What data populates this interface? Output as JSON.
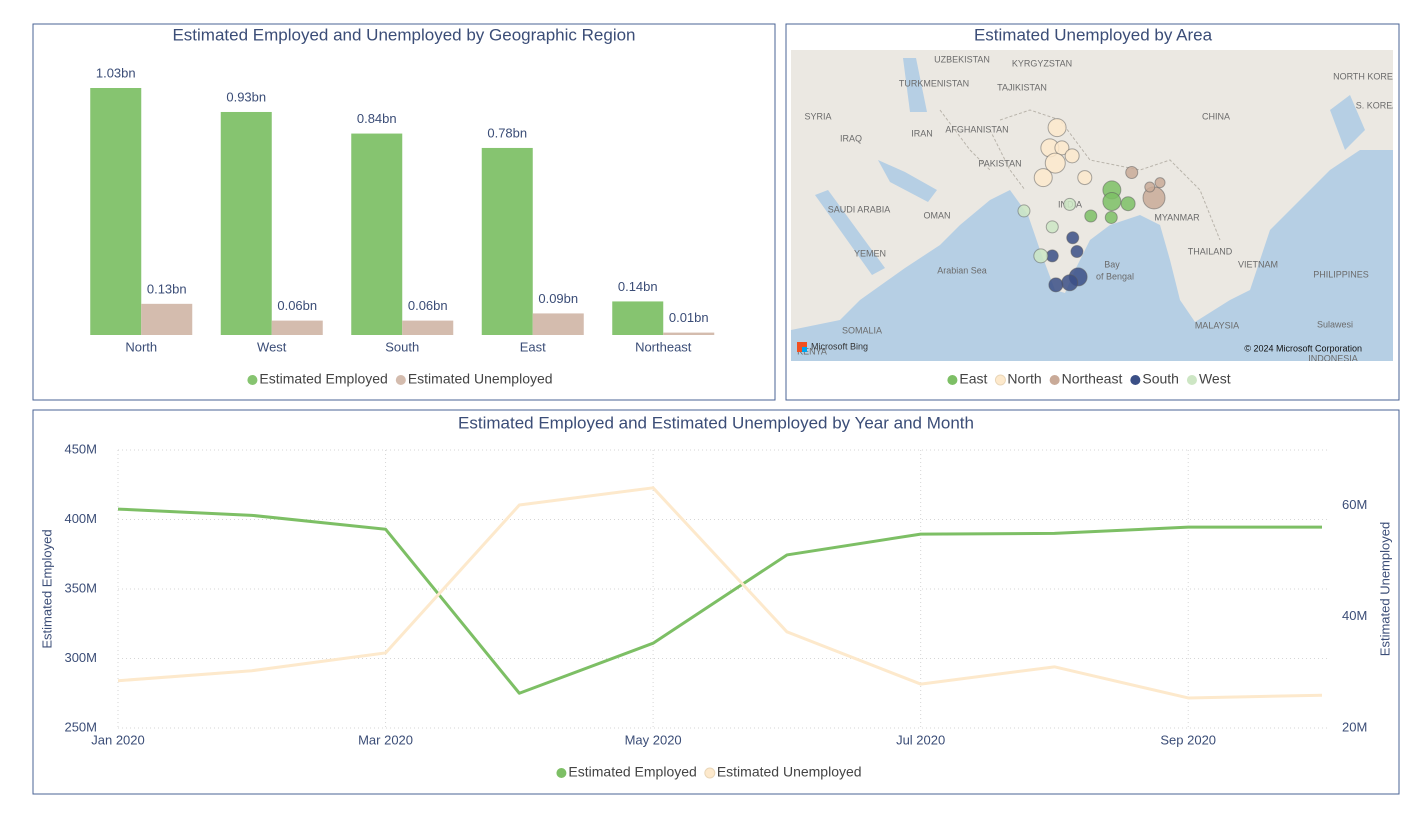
{
  "chart_data": [
    {
      "type": "bar",
      "title": "Estimated Employed and Unemployed by Geographic Region",
      "categories": [
        "North",
        "West",
        "South",
        "East",
        "Northeast"
      ],
      "series": [
        {
          "name": "Estimated Employed",
          "color": "#86c470",
          "values": [
            1.03,
            0.93,
            0.84,
            0.78,
            0.14
          ],
          "value_labels": [
            "1.03bn",
            "0.93bn",
            "0.84bn",
            "0.78bn",
            "0.14bn"
          ]
        },
        {
          "name": "Estimated Unemployed",
          "color": "#d4bcae",
          "values": [
            0.13,
            0.06,
            0.06,
            0.09,
            0.01
          ],
          "value_labels": [
            "0.13bn",
            "0.06bn",
            "0.06bn",
            "0.09bn",
            "0.01bn"
          ]
        }
      ]
    },
    {
      "type": "map",
      "title": "Estimated Unemployed by Area",
      "xlim": [
        35,
        135
      ],
      "ylim": [
        -0.5,
        42.4
      ],
      "series": [
        {
          "name": "East",
          "color": "#7dbf65",
          "x": [
            88.3,
            88.3,
            91.0,
            88.2,
            84.8
          ],
          "y": [
            23.1,
            21.5,
            21.2,
            19.3,
            19.5
          ],
          "sizes": [
            9,
            9,
            7,
            6,
            6
          ]
        },
        {
          "name": "North",
          "color": "#fde9cc",
          "x": [
            79.2,
            78.0,
            80.0,
            78.9,
            81.7,
            76.9,
            83.8
          ],
          "y": [
            31.7,
            28.9,
            28.9,
            26.8,
            27.8,
            24.8,
            24.8
          ],
          "sizes": [
            9,
            9,
            7,
            10,
            7,
            9,
            7
          ]
        },
        {
          "name": "Northeast",
          "color": "#c9aa98",
          "x": [
            91.6,
            95.3,
            94.6,
            96.3
          ],
          "y": [
            25.5,
            22.0,
            23.5,
            24.1
          ],
          "sizes": [
            6,
            11,
            5,
            5
          ]
        },
        {
          "name": "South",
          "color": "#3b4f86",
          "x": [
            81.8,
            82.5,
            78.4,
            82.7,
            81.3,
            79.0
          ],
          "y": [
            16.5,
            14.6,
            14.0,
            11.1,
            10.3,
            10.0
          ],
          "sizes": [
            6,
            6,
            6,
            9,
            8,
            7
          ]
        },
        {
          "name": "West",
          "color": "#cde6c4",
          "x": [
            73.7,
            78.4,
            81.3,
            76.5
          ],
          "y": [
            20.2,
            18.0,
            21.1,
            14.0
          ],
          "sizes": [
            6,
            6,
            6,
            7
          ]
        }
      ],
      "map_labels": [
        "UZBEKISTAN",
        "KYRGYZSTAN",
        "TURKMENISTAN",
        "TAJIKISTAN",
        "SYRIA",
        "IRAQ",
        "IRAN",
        "AFGHANISTAN",
        "PAKISTAN",
        "CHINA",
        "NORTH KOREA",
        "S. KOREA",
        "INDIA",
        "SAUDI ARABIA",
        "OMAN",
        "YEMEN",
        "Arabian Sea",
        "Bay",
        "of Bengal",
        "MYANMAR",
        "THAILAND",
        "VIETNAM",
        "PHILIPPINES",
        "MALAYSIA",
        "Sulawesi",
        "INDONESIA",
        "SOMALIA",
        "KENYA"
      ],
      "source": "Microsoft Bing",
      "attribution": "© 2024 Microsoft Corporation"
    },
    {
      "type": "line",
      "title": "Estimated Employed and Estimated Unemployed by Year and Month",
      "categories": [
        "Jan 2020",
        null,
        "Mar 2020",
        null,
        "May 2020",
        null,
        "Jul 2020",
        null,
        "Sep 2020",
        null
      ],
      "y_label": "Estimated Employed",
      "y2_label": "Estimated Unemployed",
      "ylim": [
        250,
        450
      ],
      "yticks": [
        {
          "value": 250,
          "label": "250M"
        },
        {
          "value": 300,
          "label": "300M"
        },
        {
          "value": 350,
          "label": "350M"
        },
        {
          "value": 400,
          "label": "400M"
        },
        {
          "value": 450,
          "label": "450M"
        }
      ],
      "y2lim": [
        20,
        70
      ],
      "y2ticks": [
        {
          "value": 20,
          "label": "20M"
        },
        {
          "value": 40,
          "label": "40M"
        },
        {
          "value": 60,
          "label": "60M"
        }
      ],
      "grid": true,
      "series": [
        {
          "name": "Estimated Employed",
          "color": "#7dbf65",
          "values": [
            407.5,
            403,
            393,
            275,
            311,
            374.5,
            389.5,
            390,
            394.5,
            394.5
          ]
        },
        {
          "name": "Estimated Unemployed",
          "color": "#fde9cc",
          "axis": "y2",
          "values": [
            28.5,
            30.3,
            33.5,
            60.1,
            63.2,
            37.3,
            27.9,
            31.0,
            25.4,
            25.9
          ]
        }
      ]
    }
  ]
}
